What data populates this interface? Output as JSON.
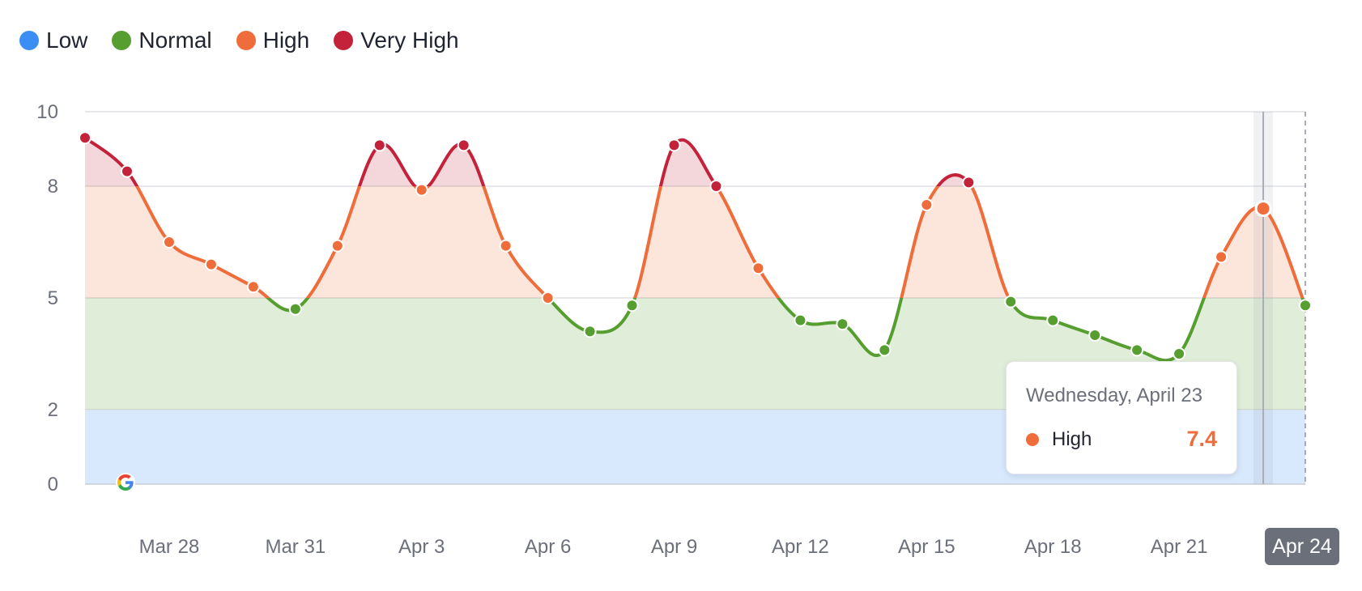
{
  "legend": [
    {
      "label": "Low",
      "color": "#3b8ef3"
    },
    {
      "label": "Normal",
      "color": "#559e2f"
    },
    {
      "label": "High",
      "color": "#ef6d3a"
    },
    {
      "label": "Very High",
      "color": "#c4213a"
    }
  ],
  "tooltip": {
    "date": "Wednesday, April 23",
    "label": "High",
    "value": "7.4",
    "color": "#ef6d3a"
  },
  "hover_date_label": "Apr 24",
  "logo_icon": "google-g-icon",
  "chart_data": {
    "type": "line",
    "title": "",
    "xlabel": "",
    "ylabel": "",
    "ylim": [
      0,
      10
    ],
    "yticks": [
      0,
      2,
      5,
      8,
      10
    ],
    "grid": true,
    "legend_position": "top-left",
    "x_tick_labels": [
      "Mar 28",
      "Mar 31",
      "Apr 3",
      "Apr 6",
      "Apr 9",
      "Apr 12",
      "Apr 15",
      "Apr 18",
      "Apr 21",
      "Apr 24"
    ],
    "bands": [
      {
        "name": "Low",
        "from": 0,
        "to": 2,
        "color": "#3b8ef3"
      },
      {
        "name": "Normal",
        "from": 2,
        "to": 5,
        "color": "#559e2f"
      },
      {
        "name": "High",
        "from": 5,
        "to": 8,
        "color": "#ef6d3a"
      },
      {
        "name": "Very High",
        "from": 8,
        "to": 10,
        "color": "#c4213a"
      }
    ],
    "x": [
      "Mar 26",
      "Mar 27",
      "Mar 28",
      "Mar 29",
      "Mar 30",
      "Mar 31",
      "Apr 1",
      "Apr 2",
      "Apr 3",
      "Apr 4",
      "Apr 5",
      "Apr 6",
      "Apr 7",
      "Apr 8",
      "Apr 9",
      "Apr 10",
      "Apr 11",
      "Apr 12",
      "Apr 13",
      "Apr 14",
      "Apr 15",
      "Apr 16",
      "Apr 17",
      "Apr 18",
      "Apr 19",
      "Apr 20",
      "Apr 21",
      "Apr 22",
      "Apr 23",
      "Apr 24"
    ],
    "values": [
      9.3,
      8.4,
      6.5,
      5.9,
      5.3,
      4.7,
      6.4,
      9.1,
      7.9,
      9.1,
      6.4,
      5.0,
      4.1,
      4.8,
      9.1,
      8.0,
      5.8,
      4.4,
      4.3,
      3.6,
      7.5,
      8.1,
      4.9,
      4.4,
      4.0,
      3.6,
      3.5,
      6.1,
      7.4,
      4.8
    ],
    "highlight_index": 28
  }
}
